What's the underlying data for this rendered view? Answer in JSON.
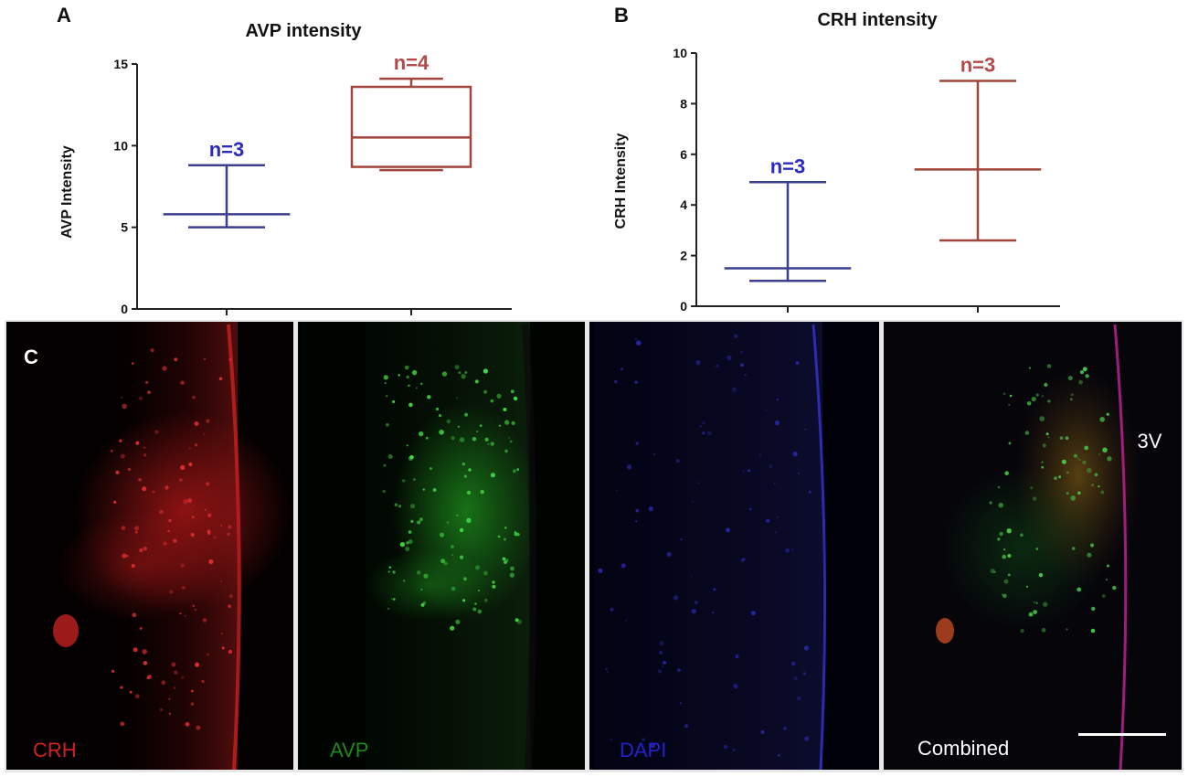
{
  "panels": {
    "a": "A",
    "b": "B",
    "c": "C"
  },
  "chart_data": [
    {
      "type": "box",
      "title": "AVP intensity",
      "xlabel": "",
      "ylabel": "AVP Intensity",
      "ylim": [
        0,
        15
      ],
      "yticks": [
        "0",
        "5",
        "10",
        "15"
      ],
      "categories": [
        "",
        ""
      ],
      "series": [
        {
          "color": "#3a3f8f",
          "kind": "whisker",
          "min": 5.0,
          "median": 5.8,
          "max": 8.8,
          "n_label": "n=3",
          "n_color": "#2b2bc0"
        },
        {
          "color": "#a0453a",
          "kind": "box",
          "min": 8.5,
          "q1": 8.7,
          "median": 10.5,
          "q3": 13.6,
          "max": 14.1,
          "n_label": "n=4",
          "n_color": "#b24a4a"
        }
      ]
    },
    {
      "type": "box",
      "title": "CRH intensity",
      "xlabel": "",
      "ylabel": "CRH Intensity",
      "ylim": [
        0,
        10
      ],
      "yticks": [
        "0",
        "2",
        "4",
        "6",
        "8",
        "10"
      ],
      "categories": [
        "",
        ""
      ],
      "series": [
        {
          "color": "#3a3f8f",
          "kind": "whisker",
          "min": 1.0,
          "median": 1.5,
          "max": 4.9,
          "n_label": "n=3",
          "n_color": "#2b2bc0"
        },
        {
          "color": "#a0453a",
          "kind": "whisker",
          "min": 2.6,
          "median": 5.4,
          "max": 8.9,
          "n_label": "n=3",
          "n_color": "#b24a4a"
        }
      ]
    }
  ],
  "micrographs": {
    "labels": [
      "CRH",
      "AVP",
      "DAPI",
      "Combined"
    ],
    "label_colors": [
      "#d42020",
      "#1c8a1c",
      "#2222cc",
      "#ffffff"
    ],
    "ventricle": "3V",
    "channel_colors": [
      "red",
      "green",
      "blue",
      "merge"
    ]
  }
}
